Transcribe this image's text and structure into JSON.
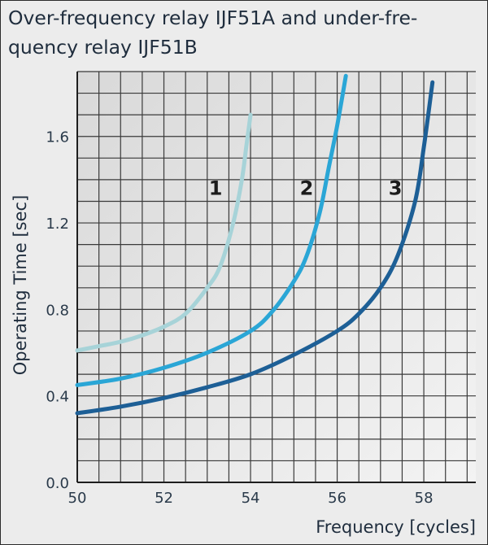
{
  "chart_data": {
    "type": "line",
    "title": "Over-frequency relay IJF51A and under-fre-\nquency relay IJF51B",
    "xlabel": "Frequency [cycles]",
    "ylabel": "Operating Time [sec]",
    "xlim": [
      50,
      59.2
    ],
    "ylim": [
      0,
      1.9
    ],
    "xticks": [
      50,
      52,
      54,
      56,
      58
    ],
    "yticks": [
      0.0,
      0.4,
      0.8,
      1.2,
      1.6
    ],
    "ytick_labels": [
      "0.0",
      "0.4",
      "0.8",
      "1.2",
      "1.6"
    ],
    "grid": true,
    "series": [
      {
        "name": "1",
        "color": "#a7d3d8",
        "points": [
          [
            50.0,
            0.61
          ],
          [
            50.5,
            0.63
          ],
          [
            51.0,
            0.65
          ],
          [
            51.5,
            0.68
          ],
          [
            52.0,
            0.72
          ],
          [
            52.5,
            0.78
          ],
          [
            53.0,
            0.9
          ],
          [
            53.3,
            1.0
          ],
          [
            53.6,
            1.2
          ],
          [
            53.8,
            1.4
          ],
          [
            53.9,
            1.55
          ],
          [
            54.0,
            1.7
          ]
        ]
      },
      {
        "name": "2",
        "color": "#2aa6d6",
        "points": [
          [
            50.0,
            0.45
          ],
          [
            51.0,
            0.48
          ],
          [
            52.0,
            0.53
          ],
          [
            53.0,
            0.6
          ],
          [
            54.0,
            0.7
          ],
          [
            54.5,
            0.79
          ],
          [
            55.0,
            0.93
          ],
          [
            55.3,
            1.05
          ],
          [
            55.6,
            1.25
          ],
          [
            55.8,
            1.45
          ],
          [
            56.0,
            1.65
          ],
          [
            56.2,
            1.88
          ]
        ]
      },
      {
        "name": "3",
        "color": "#1d5f96",
        "points": [
          [
            50.0,
            0.32
          ],
          [
            51.0,
            0.35
          ],
          [
            52.0,
            0.39
          ],
          [
            53.0,
            0.44
          ],
          [
            54.0,
            0.5
          ],
          [
            55.0,
            0.59
          ],
          [
            56.0,
            0.7
          ],
          [
            56.5,
            0.78
          ],
          [
            57.0,
            0.9
          ],
          [
            57.4,
            1.05
          ],
          [
            57.8,
            1.3
          ],
          [
            58.0,
            1.55
          ],
          [
            58.2,
            1.85
          ]
        ]
      }
    ]
  }
}
